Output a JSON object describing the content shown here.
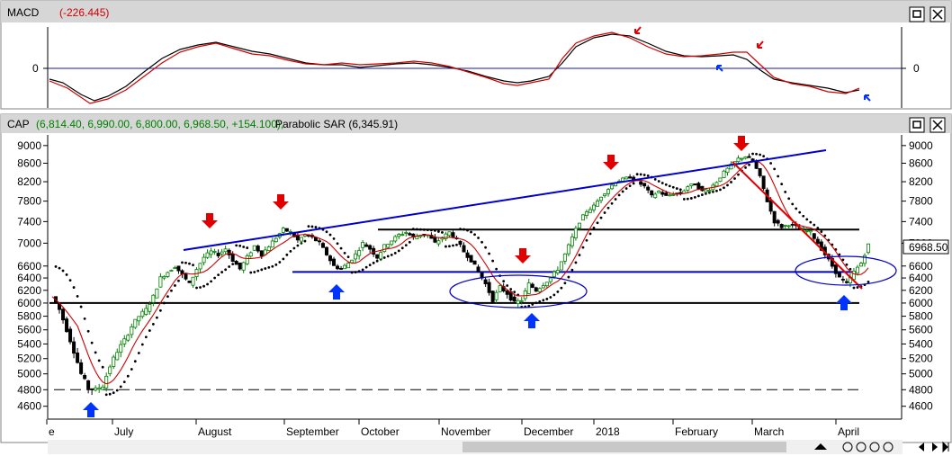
{
  "macd_panel": {
    "title": "MACD",
    "value": "(-226.445)",
    "zero_label": "0",
    "line_colors": {
      "macd": "#000000",
      "signal": "#d00000"
    }
  },
  "price_panel": {
    "title": "CAP",
    "ohlc": "(6,814.40, 6,990.00, 6,800.00, 6,968.50, +154.100),",
    "indicator": "Parabolic SAR (6,345.91)",
    "last_price": "6968.50",
    "last_price_color": "#000000"
  },
  "window_buttons": [
    "maximize",
    "close"
  ],
  "colors": {
    "up_candle": "#ffffff",
    "up_candle_border": "#008000",
    "down_candle": "#000000",
    "ma_line": "#d00000",
    "trendline": "#0000cc",
    "support": "#000000",
    "arrow_down": "#e00000",
    "arrow_up": "#0033ff",
    "ellipse": "#0000cc"
  },
  "time_axis": {
    "labels": [
      "e",
      "July",
      "August",
      "September",
      "October",
      "November",
      "December",
      "2018",
      "February",
      "March",
      "April"
    ]
  },
  "scroll_controls": [
    "up-arrow-icon",
    "zoom-out-icon",
    "zoom-in-icon",
    "left-icon",
    "right-icon",
    "end-icon"
  ],
  "chart_data": [
    {
      "type": "line",
      "title": "MACD",
      "series": [],
      "y_ticks": [
        "0"
      ],
      "annotations": [
        "red arrows at peaks",
        "blue arrows at troughs"
      ]
    },
    {
      "type": "candlestick",
      "title": "CAP",
      "y_ticks": [
        9000,
        8600,
        8200,
        7800,
        7400,
        7000,
        6600,
        6400,
        6200,
        6000,
        5800,
        5600,
        5400,
        5200,
        5000,
        4800,
        4600
      ],
      "ylim": [
        4450,
        9250
      ],
      "x_labels": [
        "e",
        "July",
        "August",
        "September",
        "October",
        "November",
        "December",
        "2018",
        "February",
        "March",
        "April"
      ],
      "horizontal_lines": [
        6000,
        7250,
        6500,
        4800
      ],
      "close_path": [
        [
          0,
          6100
        ],
        [
          2,
          5900
        ],
        [
          4,
          5600
        ],
        [
          6,
          5300
        ],
        [
          8,
          5000
        ],
        [
          10,
          4820
        ],
        [
          12,
          4800
        ],
        [
          14,
          4850
        ],
        [
          16,
          5100
        ],
        [
          18,
          5300
        ],
        [
          20,
          5450
        ],
        [
          22,
          5650
        ],
        [
          24,
          5800
        ],
        [
          26,
          5900
        ],
        [
          28,
          6100
        ],
        [
          30,
          6400
        ],
        [
          32,
          6500
        ],
        [
          34,
          6600
        ],
        [
          36,
          6450
        ],
        [
          38,
          6300
        ],
        [
          40,
          6550
        ],
        [
          42,
          6750
        ],
        [
          44,
          6850
        ],
        [
          46,
          6800
        ],
        [
          48,
          6900
        ],
        [
          50,
          6700
        ],
        [
          52,
          6550
        ],
        [
          54,
          6750
        ],
        [
          56,
          6950
        ],
        [
          58,
          6800
        ],
        [
          60,
          6950
        ],
        [
          62,
          7100
        ],
        [
          64,
          7250
        ],
        [
          66,
          7200
        ],
        [
          68,
          7050
        ],
        [
          70,
          7150
        ],
        [
          72,
          7100
        ],
        [
          74,
          7000
        ],
        [
          76,
          6800
        ],
        [
          78,
          6600
        ],
        [
          80,
          6550
        ],
        [
          82,
          6650
        ],
        [
          84,
          6800
        ],
        [
          86,
          7000
        ],
        [
          88,
          6900
        ],
        [
          90,
          6750
        ],
        [
          92,
          6950
        ],
        [
          94,
          7050
        ],
        [
          96,
          7150
        ],
        [
          98,
          7200
        ],
        [
          100,
          7100
        ],
        [
          102,
          7150
        ],
        [
          104,
          7150
        ],
        [
          106,
          7000
        ],
        [
          108,
          7100
        ],
        [
          110,
          7200
        ],
        [
          112,
          7050
        ],
        [
          114,
          6850
        ],
        [
          116,
          6700
        ],
        [
          118,
          6500
        ],
        [
          120,
          6300
        ],
        [
          122,
          6050
        ],
        [
          124,
          6250
        ],
        [
          126,
          6150
        ],
        [
          128,
          6000
        ],
        [
          130,
          6050
        ],
        [
          132,
          6300
        ],
        [
          134,
          6200
        ],
        [
          136,
          6300
        ],
        [
          138,
          6400
        ],
        [
          140,
          6550
        ],
        [
          142,
          6800
        ],
        [
          144,
          7100
        ],
        [
          146,
          7400
        ],
        [
          148,
          7600
        ],
        [
          150,
          7700
        ],
        [
          152,
          7900
        ],
        [
          154,
          8050
        ],
        [
          156,
          8200
        ],
        [
          158,
          8250
        ],
        [
          160,
          8300
        ],
        [
          162,
          8200
        ],
        [
          164,
          8100
        ],
        [
          166,
          7900
        ],
        [
          168,
          8000
        ],
        [
          170,
          7900
        ],
        [
          172,
          7950
        ],
        [
          174,
          7950
        ],
        [
          176,
          8100
        ],
        [
          178,
          8150
        ],
        [
          180,
          8000
        ],
        [
          182,
          8050
        ],
        [
          184,
          8200
        ],
        [
          186,
          8400
        ],
        [
          188,
          8550
        ],
        [
          190,
          8700
        ],
        [
          192,
          8750
        ],
        [
          194,
          8650
        ],
        [
          196,
          8300
        ],
        [
          198,
          7800
        ],
        [
          200,
          7400
        ],
        [
          202,
          7300
        ],
        [
          204,
          7350
        ],
        [
          206,
          7300
        ],
        [
          208,
          7250
        ],
        [
          210,
          7200
        ],
        [
          212,
          7000
        ],
        [
          214,
          6800
        ],
        [
          216,
          6600
        ],
        [
          218,
          6400
        ],
        [
          220,
          6300
        ],
        [
          222,
          6500
        ],
        [
          224,
          6650
        ],
        [
          226,
          6968.5
        ]
      ]
    }
  ]
}
